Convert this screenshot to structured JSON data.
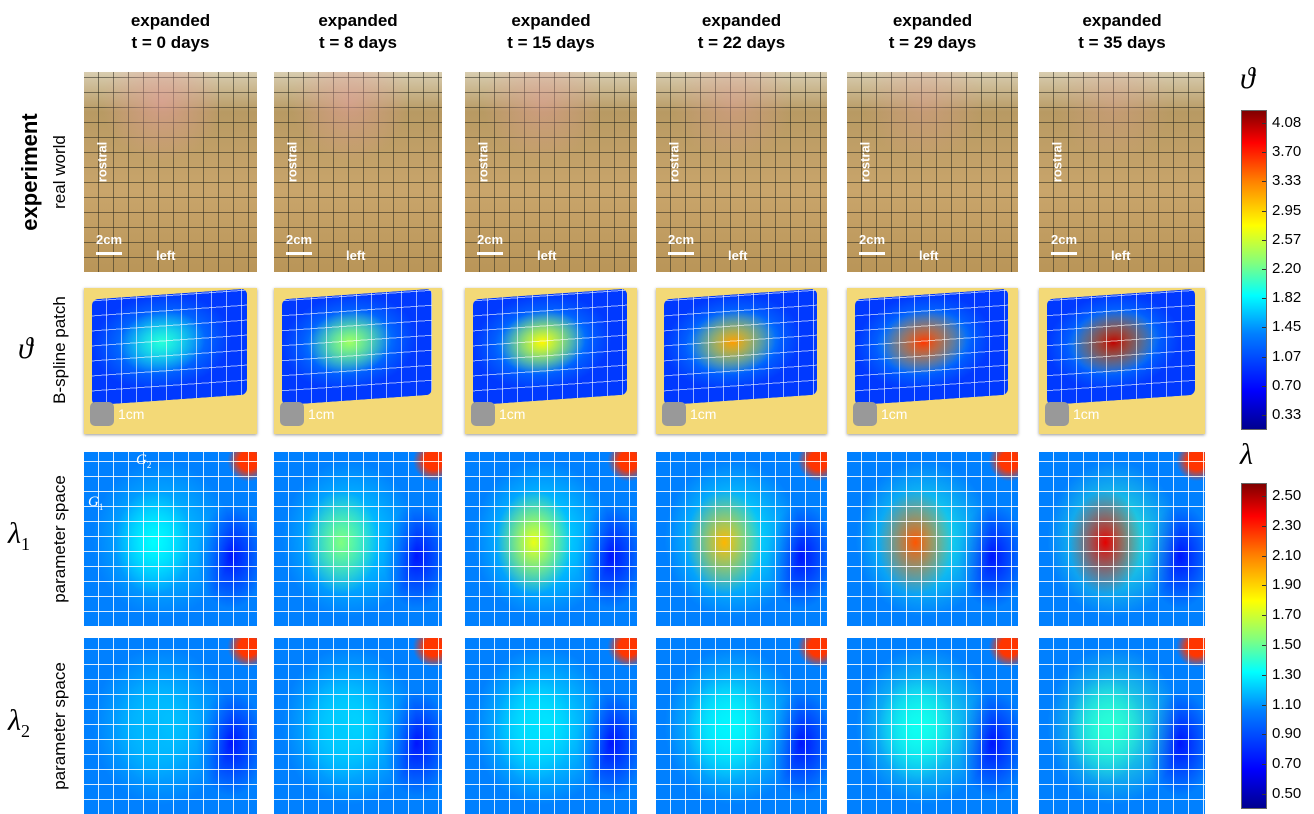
{
  "columns": [
    {
      "line1": "expanded",
      "line2": "t = 0 days"
    },
    {
      "line1": "expanded",
      "line2": "t = 8 days"
    },
    {
      "line1": "expanded",
      "line2": "t = 15 days"
    },
    {
      "line1": "expanded",
      "line2": "t = 22 days"
    },
    {
      "line1": "expanded",
      "line2": "t = 29 days"
    },
    {
      "line1": "expanded",
      "line2": "t = 35 days"
    }
  ],
  "rows": [
    {
      "title": "experiment",
      "subtitle": "real world"
    },
    {
      "symbol": "ϑ",
      "subtitle": "B-spline patch"
    },
    {
      "symbol": "λ",
      "subscript": "1",
      "subtitle": "parameter space"
    },
    {
      "symbol": "λ",
      "subscript": "2",
      "subtitle": "parameter space"
    }
  ],
  "photo_labels": {
    "orientation": "rostral",
    "scale": "2cm",
    "direction": "left"
  },
  "patch_labels": {
    "scale": "1cm"
  },
  "grid_labels": {
    "g2": {
      "symbol": "G",
      "subscript": "2"
    },
    "g1": {
      "symbol": "G",
      "subscript": "1"
    }
  },
  "colorbars": [
    {
      "symbol": "ϑ",
      "ticks": [
        "4.08",
        "3.70",
        "3.33",
        "2.95",
        "2.57",
        "2.20",
        "1.82",
        "1.45",
        "1.07",
        "0.70",
        "0.33"
      ]
    },
    {
      "symbol": "λ",
      "ticks": [
        "2.50",
        "2.30",
        "2.10",
        "1.90",
        "1.70",
        "1.50",
        "1.30",
        "1.10",
        "0.90",
        "0.70",
        "0.50"
      ]
    }
  ]
}
